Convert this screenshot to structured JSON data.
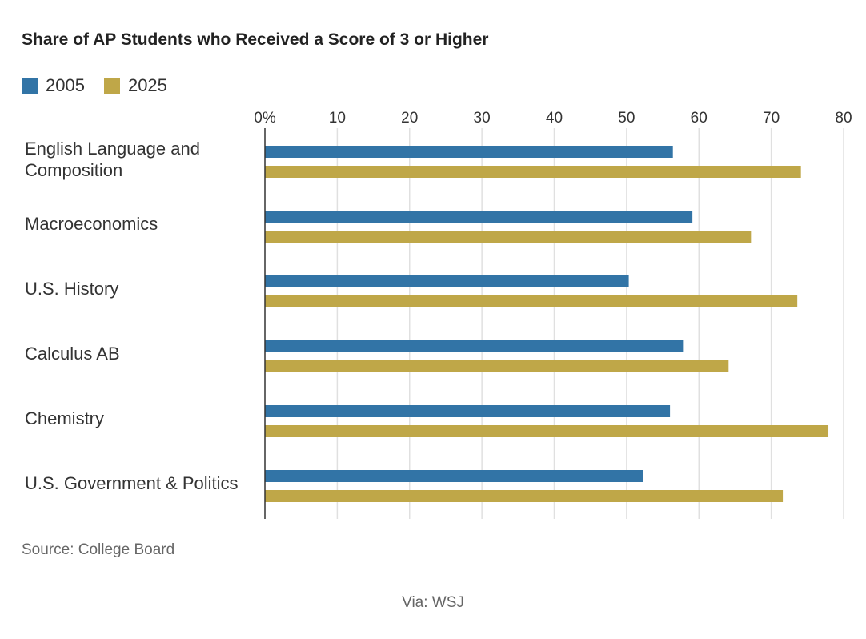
{
  "chart_data": {
    "type": "bar",
    "orientation": "horizontal",
    "title": "Share of AP Students who Received a Score of 3 or Higher",
    "categories": [
      "English Language and Composition",
      "Macroeconomics",
      "U.S. History",
      "Calculus AB",
      "Chemistry",
      "U.S. Government & Politics"
    ],
    "category_lines": [
      [
        "English Language and",
        "Composition"
      ],
      [
        "Macroeconomics"
      ],
      [
        "U.S. History"
      ],
      [
        "Calculus AB"
      ],
      [
        "Chemistry"
      ],
      [
        "U.S. Government & Politics"
      ]
    ],
    "series": [
      {
        "name": "2005",
        "color": "#3274a6",
        "values": [
          56.4,
          59.1,
          50.3,
          57.8,
          56.0,
          52.3
        ]
      },
      {
        "name": "2025",
        "color": "#bfa748",
        "values": [
          74.1,
          67.2,
          73.6,
          64.1,
          77.9,
          71.6
        ]
      }
    ],
    "xlim": [
      0,
      80
    ],
    "xticks": [
      0,
      10,
      20,
      30,
      40,
      50,
      60,
      70,
      80
    ],
    "xtick_labels": [
      "0%",
      "10",
      "20",
      "30",
      "40",
      "50",
      "60",
      "70",
      "80"
    ],
    "grid": true,
    "legend_position": "top-left",
    "xlabel": "",
    "ylabel": ""
  },
  "source": "Source: College Board",
  "via": "Via: WSJ"
}
